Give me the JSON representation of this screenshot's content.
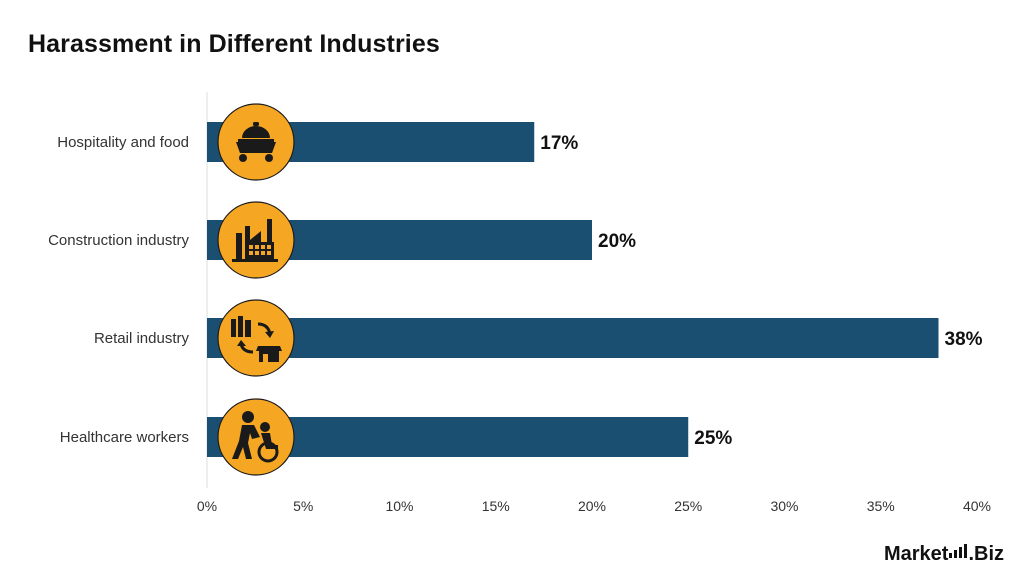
{
  "chart_data": {
    "type": "bar",
    "orientation": "horizontal",
    "title": "Harassment in Different Industries",
    "categories": [
      "Hospitality and food",
      "Construction industry",
      "Retail industry",
      "Healthcare workers"
    ],
    "values": [
      17,
      20,
      38,
      25
    ],
    "value_labels": [
      "17%",
      "20%",
      "38%",
      "25%"
    ],
    "icons": [
      "food-cart-icon",
      "factory-icon",
      "retail-exchange-icon",
      "caregiver-wheelchair-icon"
    ],
    "xlim": [
      0,
      40
    ],
    "xticks": [
      "0%",
      "5%",
      "10%",
      "15%",
      "20%",
      "25%",
      "30%",
      "35%",
      "40%"
    ],
    "grid": false,
    "bar_color": "#1b4f72",
    "icon_color": "#f5a623"
  },
  "brand": {
    "text_before": "Market",
    "text_after": ".Biz"
  }
}
